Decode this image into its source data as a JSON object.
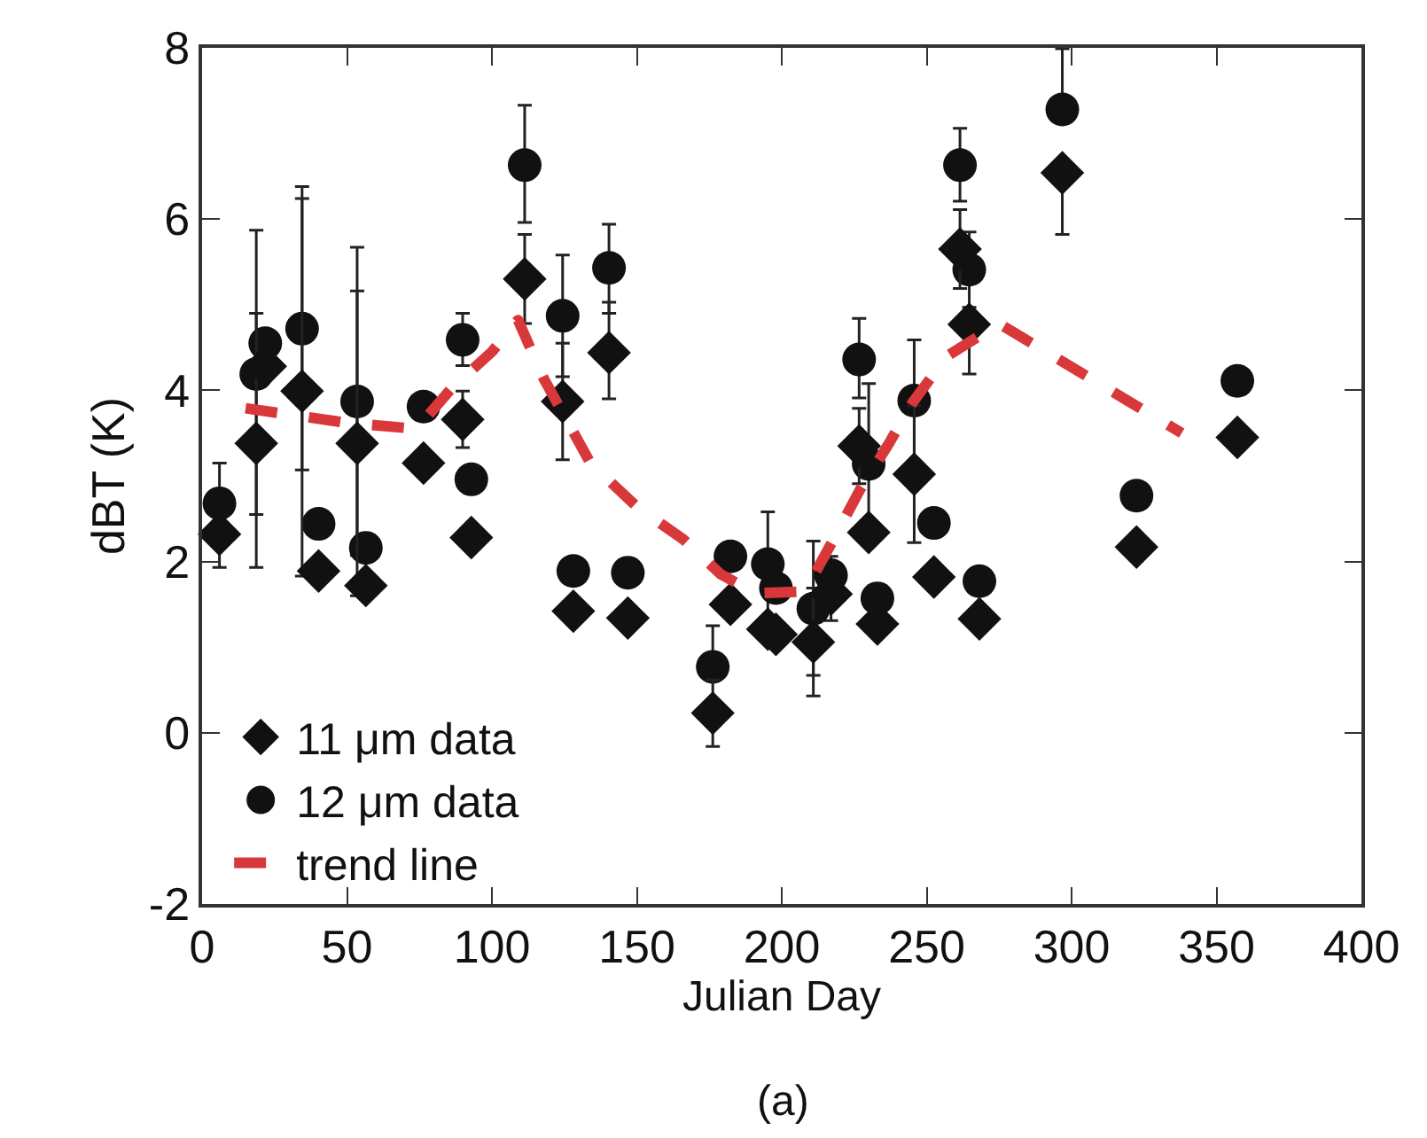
{
  "chart_data": {
    "type": "scatter",
    "xlabel": "Julian Day",
    "ylabel": "dBT (K)",
    "annotations": [
      "(a)"
    ],
    "xlim": [
      0,
      400
    ],
    "xticks": [
      0,
      50,
      100,
      150,
      200,
      250,
      300,
      350,
      400
    ],
    "ylim": [
      -2,
      8
    ],
    "yticks": [
      -2,
      0,
      2,
      4,
      6,
      8
    ],
    "legend": "bottom left",
    "series": [
      {
        "name": "11 μm data",
        "marker": "diamond",
        "color": "#111111",
        "x": [
          6,
          18.7,
          21.8,
          34.5,
          40.2,
          53.5,
          56.5,
          76.4,
          89.9,
          92.9,
          111.3,
          124.4,
          128.1,
          140.4,
          146.9,
          176.2,
          182.3,
          195.2,
          198,
          210.9,
          217,
          226.7,
          230,
          233,
          245.7,
          252.5,
          261.5,
          264.7,
          268.2,
          296.8,
          322.4,
          357.2
        ],
        "values": [
          2.32,
          3.38,
          4.28,
          3.99,
          1.89,
          3.38,
          1.72,
          3.15,
          3.66,
          2.28,
          5.3,
          3.87,
          1.42,
          4.44,
          1.34,
          0.23,
          1.5,
          1.21,
          1.15,
          1.06,
          1.62,
          3.35,
          2.34,
          1.27,
          3.02,
          1.82,
          5.65,
          4.77,
          1.33,
          6.54,
          2.17,
          3.45
        ],
        "errors": [
          null,
          [
            1.93,
            5.87
          ],
          null,
          [
            1.83,
            6.24
          ],
          null,
          [
            1.6,
            5.16
          ],
          null,
          null,
          [
            3.33,
            3.99
          ],
          null,
          [
            4.78,
            5.82
          ],
          [
            3.19,
            4.55
          ],
          null,
          [
            3.9,
            5.03
          ],
          null,
          [
            -0.16,
            0.62
          ],
          null,
          null,
          null,
          [
            0.43,
            1.69
          ],
          null,
          [
            2.91,
            3.79
          ],
          null,
          null,
          [
            2.22,
            3.82
          ],
          null,
          [
            5.19,
            6.11
          ],
          [
            4.19,
            4.77
          ],
          null,
          [
            5.82,
            6.54
          ],
          null,
          null
        ]
      },
      {
        "name": "12 μm data",
        "marker": "circle",
        "color": "#111111",
        "x": [
          6,
          18.7,
          21.8,
          34.5,
          40.2,
          53.5,
          56.5,
          76.4,
          89.9,
          92.9,
          111.3,
          124.4,
          128.1,
          140.4,
          146.9,
          176.2,
          182.3,
          195.2,
          198,
          210.9,
          217,
          226.7,
          230,
          233,
          245.7,
          252.5,
          261.5,
          264.7,
          268.2,
          296.8,
          322.4,
          357.2
        ],
        "values": [
          2.68,
          4.19,
          4.55,
          4.72,
          2.44,
          3.87,
          2.16,
          3.81,
          4.59,
          2.96,
          6.63,
          4.87,
          1.89,
          5.43,
          1.87,
          0.77,
          2.06,
          1.97,
          1.69,
          1.45,
          1.84,
          4.36,
          3.14,
          1.57,
          3.88,
          2.45,
          6.63,
          5.41,
          1.77,
          7.28,
          2.77,
          4.11
        ],
        "errors": [
          [
            1.93,
            3.15
          ],
          [
            2.55,
            4.9
          ],
          null,
          [
            3.07,
            6.38
          ],
          null,
          [
            2.07,
            5.67
          ],
          null,
          null,
          [
            4.29,
            4.9
          ],
          null,
          [
            5.96,
            7.33
          ],
          [
            4.16,
            5.58
          ],
          null,
          [
            4.9,
            5.94
          ],
          null,
          [
            0.77,
            1.25
          ],
          null,
          [
            1.36,
            2.58
          ],
          null,
          [
            0.67,
            2.24
          ],
          [
            1.31,
            2.06
          ],
          [
            3.91,
            4.84
          ],
          [
            2.2,
            4.08
          ],
          null,
          [
            3.17,
            4.59
          ],
          null,
          [
            6.21,
            7.06
          ],
          [
            4.97,
            5.85
          ],
          null,
          [
            7.28,
            7.99
          ],
          null,
          null
        ]
      },
      {
        "name": "trend line",
        "type": "line",
        "line_style": "dashed",
        "marker": "none",
        "color": "#d9383a",
        "x": [
          15,
          50,
          74,
          86,
          100,
          109,
          118,
          134,
          150,
          166,
          179,
          191,
          208,
          219,
          227,
          237,
          245,
          257,
          275,
          338
        ],
        "values": [
          3.79,
          3.62,
          3.55,
          4.02,
          4.45,
          4.82,
          4.13,
          3.15,
          2.64,
          2.26,
          1.85,
          1.63,
          1.65,
          2.33,
          2.84,
          3.38,
          3.85,
          4.4,
          4.78,
          3.5
        ]
      }
    ]
  }
}
